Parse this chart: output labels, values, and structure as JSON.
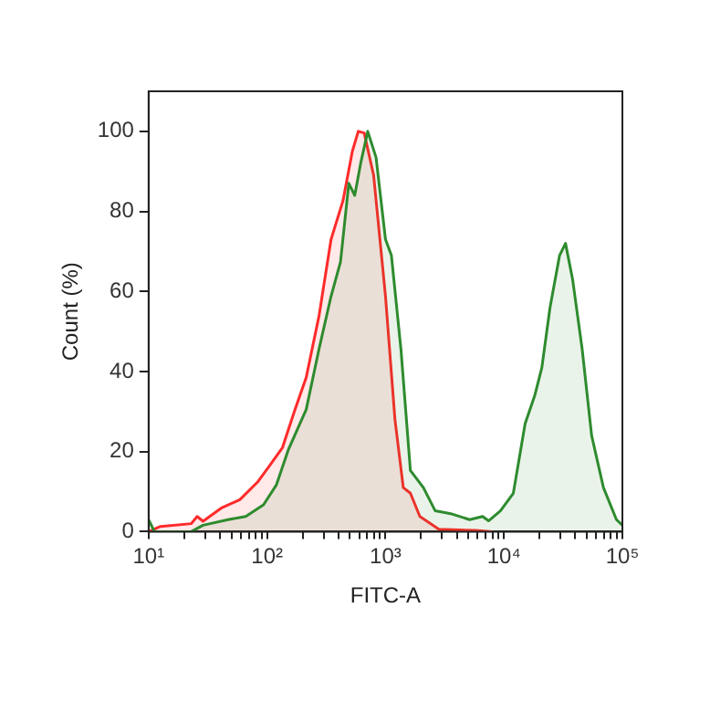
{
  "chart_data": {
    "type": "area",
    "xlabel": "FITC-A",
    "ylabel": "Count (%)",
    "log": "x",
    "xlim": [
      10,
      100000
    ],
    "ylim": [
      0,
      110
    ],
    "yticks": [
      0,
      20,
      40,
      60,
      80,
      100
    ],
    "xticks": [
      {
        "value": 10,
        "label": "10¹"
      },
      {
        "value": 20,
        "label": null
      },
      {
        "value": 30,
        "label": null
      },
      {
        "value": 40,
        "label": null
      },
      {
        "value": 50,
        "label": null
      },
      {
        "value": 60,
        "label": null
      },
      {
        "value": 70,
        "label": null
      },
      {
        "value": 80,
        "label": null
      },
      {
        "value": 90,
        "label": null
      },
      {
        "value": 100,
        "label": "10²"
      },
      {
        "value": 200,
        "label": null
      },
      {
        "value": 300,
        "label": null
      },
      {
        "value": 400,
        "label": null
      },
      {
        "value": 500,
        "label": null
      },
      {
        "value": 600,
        "label": null
      },
      {
        "value": 700,
        "label": null
      },
      {
        "value": 800,
        "label": null
      },
      {
        "value": 900,
        "label": null
      },
      {
        "value": 1000,
        "label": "10³"
      },
      {
        "value": 2000,
        "label": null
      },
      {
        "value": 3000,
        "label": null
      },
      {
        "value": 4000,
        "label": null
      },
      {
        "value": 5000,
        "label": null
      },
      {
        "value": 6000,
        "label": null
      },
      {
        "value": 7000,
        "label": null
      },
      {
        "value": 8000,
        "label": null
      },
      {
        "value": 9000,
        "label": null
      },
      {
        "value": 10000,
        "label": "10⁴"
      },
      {
        "value": 20000,
        "label": null
      },
      {
        "value": 30000,
        "label": null
      },
      {
        "value": 40000,
        "label": null
      },
      {
        "value": 50000,
        "label": null
      },
      {
        "value": 60000,
        "label": null
      },
      {
        "value": 70000,
        "label": null
      },
      {
        "value": 80000,
        "label": null
      },
      {
        "value": 90000,
        "label": null
      },
      {
        "value": 100000,
        "label": "10⁵"
      }
    ],
    "grid": false,
    "legend": false,
    "series": [
      {
        "color": "#2e8b2e",
        "x": [
          10,
          11.2,
          22.9,
          28.8,
          46.8,
          66.1,
          93.3,
          120,
          151,
          214,
          275,
          347,
          417,
          490,
          550,
          617,
          708,
          832,
          1000,
          1122,
          1349,
          1622,
          2089,
          2630,
          3548,
          5129,
          6607,
          7413,
          9333,
          12000,
          15100,
          18200,
          20900,
          24500,
          29500,
          33100,
          38000,
          45700,
          55000,
          69200,
          89100,
          100000
        ],
        "values": [
          3,
          0,
          0,
          1.6,
          3,
          3.8,
          6.7,
          11.7,
          20.4,
          30.5,
          45.7,
          58.8,
          67.4,
          87,
          84,
          92,
          100,
          93.5,
          73,
          69,
          45.7,
          15.3,
          11,
          5.2,
          4.5,
          3,
          3.8,
          2.7,
          5.2,
          9.6,
          27,
          34,
          41,
          56,
          69,
          72,
          63,
          45.7,
          24,
          11,
          3,
          1.6
        ]
      },
      {
        "color": "#ff2a2a",
        "x": [
          10,
          12.6,
          22.9,
          25.7,
          28.8,
          41.7,
          58.9,
          83.2,
          107,
          135,
          170,
          214,
          275,
          347,
          437,
          525,
          589,
          661,
          794,
          1000,
          1202,
          1413,
          1622,
          1950,
          2820,
          5750,
          7940
        ],
        "values": [
          0,
          1.3,
          2,
          3.8,
          2.6,
          6,
          8,
          12.4,
          16.8,
          21,
          30,
          38.5,
          54,
          73,
          82.6,
          95,
          100,
          99.6,
          89,
          58.8,
          28,
          11,
          9.6,
          3.8,
          0.6,
          0.3,
          0
        ]
      }
    ]
  }
}
